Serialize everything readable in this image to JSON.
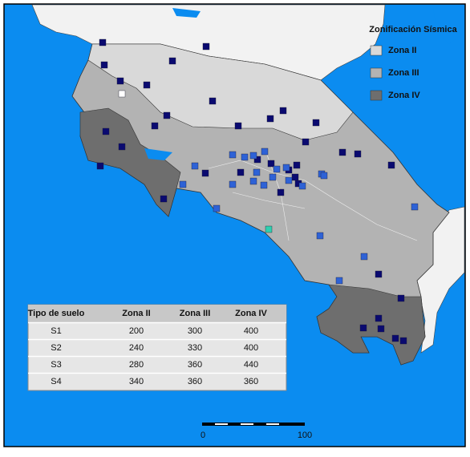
{
  "legend": {
    "title": "Zonificación Sísmica",
    "items": [
      "Zona II",
      "Zona III",
      "Zona IV"
    ]
  },
  "table": {
    "headers": [
      "Tipo de suelo",
      "Zona II",
      "Zona III",
      "Zona IV"
    ],
    "rows": [
      [
        "S1",
        200,
        300,
        400
      ],
      [
        "S2",
        240,
        330,
        400
      ],
      [
        "S3",
        280,
        360,
        440
      ],
      [
        "S4",
        340,
        360,
        360
      ]
    ]
  },
  "scale": {
    "labels": [
      "0",
      "100"
    ]
  }
}
